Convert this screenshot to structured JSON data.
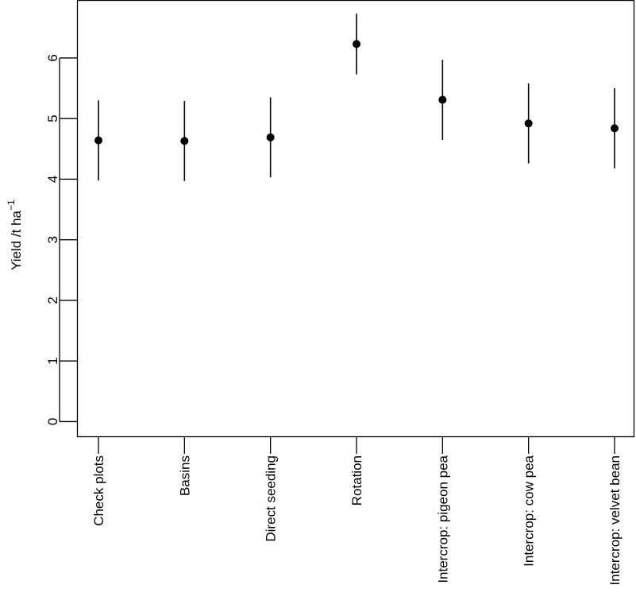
{
  "chart_data": {
    "type": "scatter",
    "title": "",
    "xlabel": "",
    "ylabel": "Yield /t ha",
    "ylabel_superscript": "−1",
    "ylim": [
      -0.25,
      6.95
    ],
    "yticks": [
      "0",
      "1",
      "2",
      "3",
      "4",
      "5",
      "6"
    ],
    "grid": false,
    "categories": [
      "Check plots",
      "Basins",
      "Direct seeding",
      "Rotation",
      "Intercrop: pigeon pea",
      "Intercrop: cow pea",
      "Intercrop: velvet bean"
    ],
    "series": [
      {
        "values": [
          4.64,
          4.63,
          4.69,
          6.23,
          5.31,
          4.92,
          4.84
        ],
        "lower": [
          3.98,
          3.97,
          4.03,
          5.73,
          4.65,
          4.26,
          4.18
        ],
        "upper": [
          5.3,
          5.29,
          5.35,
          6.73,
          5.97,
          5.58,
          5.5
        ]
      }
    ]
  }
}
